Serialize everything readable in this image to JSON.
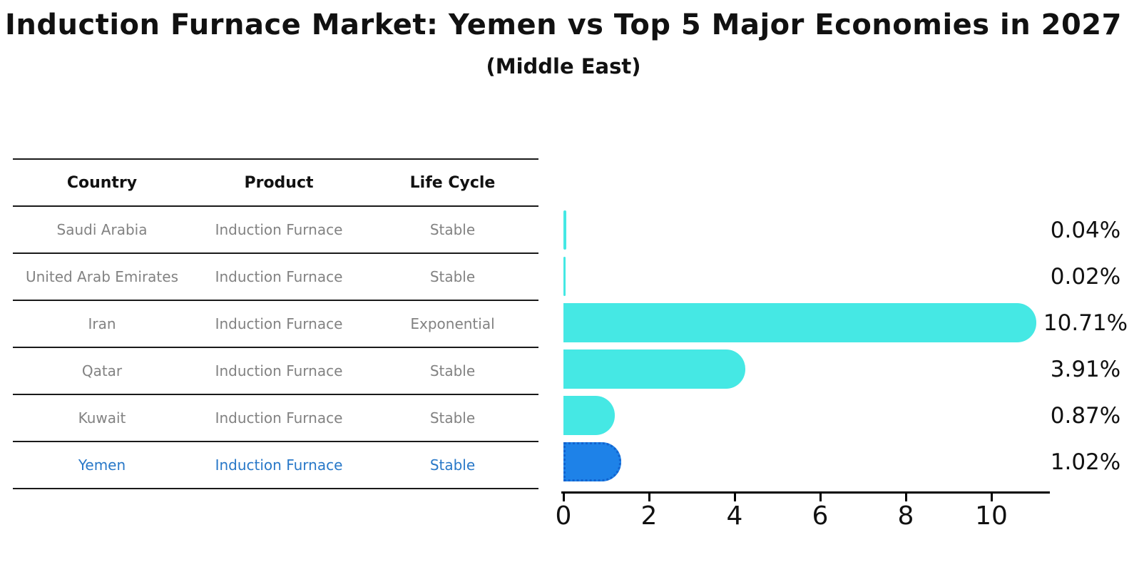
{
  "title": "Induction Furnace Market: Yemen vs Top 5 Major Economies in 2027",
  "subtitle": "(Middle East)",
  "table": {
    "headers": [
      "Country",
      "Product",
      "Life Cycle"
    ],
    "rows": [
      {
        "country": "Saudi Arabia",
        "product": "Induction Furnace",
        "life_cycle": "Stable"
      },
      {
        "country": "United Arab Emirates",
        "product": "Induction Furnace",
        "life_cycle": "Stable"
      },
      {
        "country": "Iran",
        "product": "Induction Furnace",
        "life_cycle": "Exponential"
      },
      {
        "country": "Qatar",
        "product": "Induction Furnace",
        "life_cycle": "Stable"
      },
      {
        "country": "Kuwait",
        "product": "Induction Furnace",
        "life_cycle": "Stable"
      },
      {
        "country": "Yemen",
        "product": "Induction Furnace",
        "life_cycle": "Stable"
      }
    ]
  },
  "chart_data": {
    "type": "bar",
    "orientation": "horizontal",
    "title": "Induction Furnace Market: Yemen vs Top 5 Major Economies in 2027",
    "subtitle": "(Middle East)",
    "categories": [
      "Saudi Arabia",
      "United Arab Emirates",
      "Iran",
      "Qatar",
      "Kuwait",
      "Yemen"
    ],
    "values": [
      0.04,
      0.02,
      10.71,
      3.91,
      0.87,
      1.02
    ],
    "value_labels": [
      "0.04%",
      "0.02%",
      "10.71%",
      "3.91%",
      "0.87%",
      "1.02%"
    ],
    "xticks": [
      0,
      2,
      4,
      6,
      8,
      10
    ],
    "xlim": [
      0,
      11.3
    ],
    "grid": false,
    "legend": "none",
    "highlight_index": 5,
    "highlight_category": "Yemen"
  },
  "colors": {
    "bar": "#45e8e4",
    "highlight_bar": "#1e82e8",
    "highlight_bar_border": "#1263cf",
    "highlight_text": "#2878c8",
    "table_text": "#828282",
    "header_text": "#111111",
    "axis": "#000000"
  }
}
